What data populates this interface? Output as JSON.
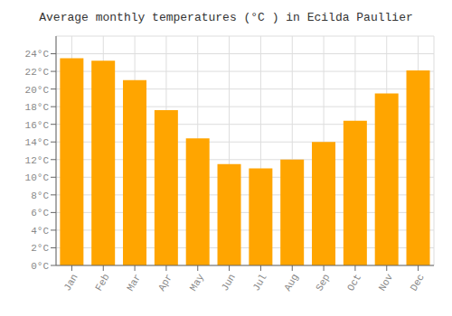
{
  "chart_data": {
    "type": "bar",
    "title": "Average monthly temperatures (°C ) in Ecilda Paullier",
    "categories": [
      "Jan",
      "Feb",
      "Mar",
      "Apr",
      "May",
      "Jun",
      "Jul",
      "Aug",
      "Sep",
      "Oct",
      "Nov",
      "Dec"
    ],
    "values": [
      23.5,
      23.2,
      21.0,
      17.6,
      14.4,
      11.5,
      11.0,
      12.0,
      14.0,
      16.4,
      19.5,
      22.1
    ],
    "color": "#FFA500",
    "ylim": [
      0,
      26
    ],
    "yticks": [
      {
        "value": 0,
        "label": "0°C"
      },
      {
        "value": 2,
        "label": "2°C"
      },
      {
        "value": 4,
        "label": "4°C"
      },
      {
        "value": 6,
        "label": "6°C"
      },
      {
        "value": 8,
        "label": "8°C"
      },
      {
        "value": 10,
        "label": "10°C"
      },
      {
        "value": 12,
        "label": "12°C"
      },
      {
        "value": 14,
        "label": "14°C"
      },
      {
        "value": 16,
        "label": "16°C"
      },
      {
        "value": 18,
        "label": "18°C"
      },
      {
        "value": 20,
        "label": "20°C"
      },
      {
        "value": 22,
        "label": "22°C"
      },
      {
        "value": 24,
        "label": "24°C"
      }
    ],
    "grid": true
  }
}
